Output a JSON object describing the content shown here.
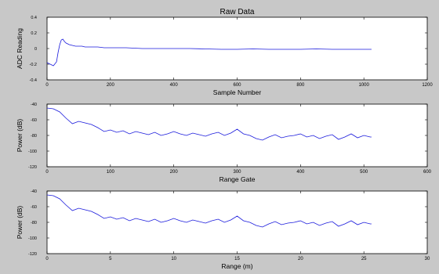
{
  "figure": {
    "background": "#c8c8c8",
    "line_color": "#1a1adc"
  },
  "chart_data": [
    {
      "type": "line",
      "title": "Raw Data",
      "xlabel": "Sample Number",
      "ylabel": "ADC Reading",
      "xlim": [
        0,
        1200
      ],
      "ylim": [
        -0.4,
        0.4
      ],
      "xticks": [
        0,
        200,
        400,
        600,
        800,
        1000,
        1200
      ],
      "yticks": [
        -0.4,
        -0.2,
        0,
        0.2,
        0.4
      ],
      "xtick_labels": [
        "0",
        "200",
        "400",
        "600",
        "800",
        "1000",
        "1200"
      ],
      "ytick_labels": [
        "-0.4",
        "-0.2",
        "0",
        "0.2",
        "0.4"
      ],
      "series": [
        {
          "x": [
            0,
            10,
            20,
            30,
            35,
            40,
            45,
            50,
            55,
            60,
            70,
            80,
            90,
            100,
            110,
            120,
            140,
            160,
            180,
            200,
            250,
            300,
            350,
            400,
            450,
            500,
            550,
            600,
            650,
            700,
            750,
            800,
            850,
            900,
            950,
            1000,
            1024
          ],
          "y": [
            -0.18,
            -0.2,
            -0.22,
            -0.17,
            -0.05,
            0.05,
            0.11,
            0.12,
            0.09,
            0.07,
            0.05,
            0.04,
            0.03,
            0.03,
            0.03,
            0.02,
            0.02,
            0.02,
            0.01,
            0.01,
            0.01,
            0.0,
            0.0,
            0.0,
            0.0,
            -0.005,
            -0.01,
            -0.01,
            -0.005,
            -0.01,
            -0.01,
            -0.01,
            -0.005,
            -0.01,
            -0.01,
            -0.01,
            -0.01
          ]
        }
      ]
    },
    {
      "type": "line",
      "title": "",
      "xlabel": "Range Gate",
      "ylabel": "Power (dB)",
      "xlim": [
        0,
        600
      ],
      "ylim": [
        -120,
        -40
      ],
      "xticks": [
        0,
        100,
        200,
        300,
        400,
        500,
        600
      ],
      "yticks": [
        -120,
        -100,
        -80,
        -60,
        -40
      ],
      "xtick_labels": [
        "0",
        "100",
        "200",
        "300",
        "400",
        "500",
        "600"
      ],
      "ytick_labels": [
        "-120",
        "-100",
        "-80",
        "-60",
        "-40"
      ],
      "series": [
        {
          "x": [
            0,
            10,
            20,
            30,
            40,
            50,
            60,
            70,
            80,
            90,
            100,
            110,
            120,
            130,
            140,
            150,
            160,
            170,
            180,
            190,
            200,
            210,
            220,
            230,
            240,
            250,
            260,
            270,
            280,
            290,
            300,
            310,
            320,
            330,
            340,
            350,
            360,
            370,
            380,
            390,
            400,
            410,
            420,
            430,
            440,
            450,
            460,
            470,
            480,
            490,
            500,
            510,
            512
          ],
          "y": [
            -45,
            -46,
            -50,
            -58,
            -65,
            -62,
            -64,
            -66,
            -70,
            -75,
            -73,
            -76,
            -74,
            -78,
            -75,
            -77,
            -79,
            -76,
            -80,
            -78,
            -75,
            -78,
            -80,
            -77,
            -79,
            -81,
            -78,
            -76,
            -80,
            -77,
            -72,
            -78,
            -80,
            -84,
            -86,
            -82,
            -79,
            -83,
            -81,
            -80,
            -78,
            -82,
            -80,
            -84,
            -81,
            -79,
            -85,
            -82,
            -78,
            -83,
            -80,
            -82,
            -82
          ]
        }
      ]
    },
    {
      "type": "line",
      "title": "",
      "xlabel": "Range (m)",
      "ylabel": "Power (dB)",
      "xlim": [
        0,
        30
      ],
      "ylim": [
        -120,
        -40
      ],
      "xticks": [
        0,
        5,
        10,
        15,
        20,
        25,
        30
      ],
      "yticks": [
        -120,
        -100,
        -80,
        -60,
        -40
      ],
      "xtick_labels": [
        "0",
        "5",
        "10",
        "15",
        "20",
        "25",
        "30"
      ],
      "ytick_labels": [
        "-120",
        "-100",
        "-80",
        "-60",
        "-40"
      ],
      "series": [
        {
          "x": [
            0,
            0.5,
            1,
            1.5,
            2,
            2.5,
            3,
            3.5,
            4,
            4.5,
            5,
            5.5,
            6,
            6.5,
            7,
            7.5,
            8,
            8.5,
            9,
            9.5,
            10,
            10.5,
            11,
            11.5,
            12,
            12.5,
            13,
            13.5,
            14,
            14.5,
            15,
            15.5,
            16,
            16.5,
            17,
            17.5,
            18,
            18.5,
            19,
            19.5,
            20,
            20.5,
            21,
            21.5,
            22,
            22.5,
            23,
            23.5,
            24,
            24.5,
            25,
            25.5,
            25.6
          ],
          "y": [
            -45,
            -46,
            -50,
            -58,
            -65,
            -62,
            -64,
            -66,
            -70,
            -75,
            -73,
            -76,
            -74,
            -78,
            -75,
            -77,
            -79,
            -76,
            -80,
            -78,
            -75,
            -78,
            -80,
            -77,
            -79,
            -81,
            -78,
            -76,
            -80,
            -77,
            -72,
            -78,
            -80,
            -84,
            -86,
            -82,
            -79,
            -83,
            -81,
            -80,
            -78,
            -82,
            -80,
            -84,
            -81,
            -79,
            -85,
            -82,
            -78,
            -83,
            -80,
            -82,
            -82
          ]
        }
      ]
    }
  ]
}
